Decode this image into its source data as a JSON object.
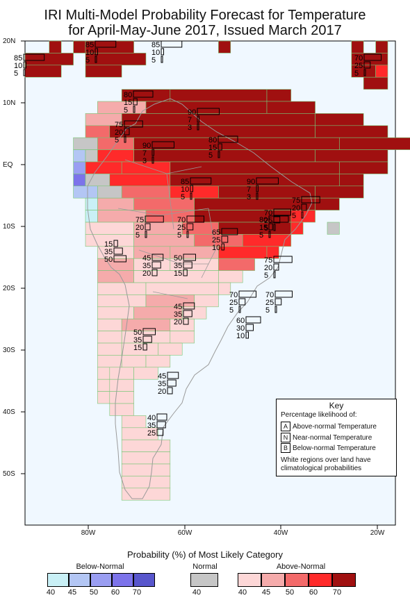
{
  "title": {
    "line1": "IRI Multi-Model Probability Forecast for Temperature",
    "line2": "for April-May-June 2017, Issued March 2017"
  },
  "axes": {
    "lat_labels": [
      "20N",
      "10N",
      "EQ",
      "10S",
      "20S",
      "30S",
      "40S",
      "50S"
    ],
    "lon_labels": [
      "80W",
      "60W",
      "40W",
      "20W"
    ]
  },
  "key": {
    "title": "Key",
    "subtitle": "Percentage likelihood of:",
    "rows": [
      {
        "code": "A",
        "label": "Above-normal Temperature"
      },
      {
        "code": "N",
        "label": "Near-normal Temperature"
      },
      {
        "code": "B",
        "label": "Below-normal Temperature"
      }
    ],
    "note": "White regions over land have climatological probabilities"
  },
  "legend": {
    "title": "Probability (%) of Most Likely Category",
    "below_label": "Below-Normal",
    "normal_label": "Normal",
    "above_label": "Above-Normal",
    "below_ticks": [
      "40",
      "45",
      "50",
      "60",
      "70"
    ],
    "normal_ticks": [
      "40"
    ],
    "above_ticks": [
      "40",
      "45",
      "50",
      "60",
      "70"
    ],
    "colors": {
      "below": [
        "#c9f0f6",
        "#b3c6f4",
        "#9a9ef2",
        "#7c73ea",
        "#5856cc"
      ],
      "normal": "#c6c6c6",
      "above": [
        "#fdd7d7",
        "#f5abab",
        "#f36a6a",
        "#ff2a2a",
        "#a01010"
      ]
    }
  },
  "probability_labels": [
    {
      "above": "85",
      "normal": "10",
      "below": "5"
    },
    {
      "above": "85",
      "normal": "10",
      "below": "5"
    },
    {
      "above": "85",
      "normal": "10",
      "below": "5"
    },
    {
      "above": "70",
      "normal": "25",
      "below": "5"
    },
    {
      "above": "80",
      "normal": "15",
      "below": "5"
    },
    {
      "above": "90",
      "normal": "7",
      "below": "3"
    },
    {
      "above": "75",
      "normal": "20",
      "below": "5"
    },
    {
      "above": "90",
      "normal": "7",
      "below": "3"
    },
    {
      "above": "80",
      "normal": "15",
      "below": "5"
    },
    {
      "above": "90",
      "normal": "7",
      "below": "3"
    },
    {
      "above": "85",
      "normal": "10",
      "below": "5"
    },
    {
      "above": "75",
      "normal": "20",
      "below": "5"
    },
    {
      "above": "70",
      "normal": "25",
      "below": "5"
    },
    {
      "above": "75",
      "normal": "20",
      "below": "5"
    },
    {
      "above": "70",
      "normal": "25",
      "below": "5"
    },
    {
      "above": "65",
      "normal": "25",
      "below": "10"
    },
    {
      "above": "80",
      "normal": "15",
      "below": "5"
    },
    {
      "above": "15",
      "normal": "35",
      "below": "50"
    },
    {
      "above": "45",
      "normal": "35",
      "below": "20"
    },
    {
      "above": "50",
      "normal": "35",
      "below": "15"
    },
    {
      "above": "75",
      "normal": "20",
      "below": "5"
    },
    {
      "above": "70",
      "normal": "25",
      "below": "5"
    },
    {
      "above": "70",
      "normal": "25",
      "below": "5"
    },
    {
      "above": "45",
      "normal": "35",
      "below": "20"
    },
    {
      "above": "60",
      "normal": "30",
      "below": "10"
    },
    {
      "above": "50",
      "normal": "35",
      "below": "15"
    },
    {
      "above": "45",
      "normal": "35",
      "below": "20"
    },
    {
      "above": "40",
      "normal": "35",
      "below": "25"
    }
  ]
}
